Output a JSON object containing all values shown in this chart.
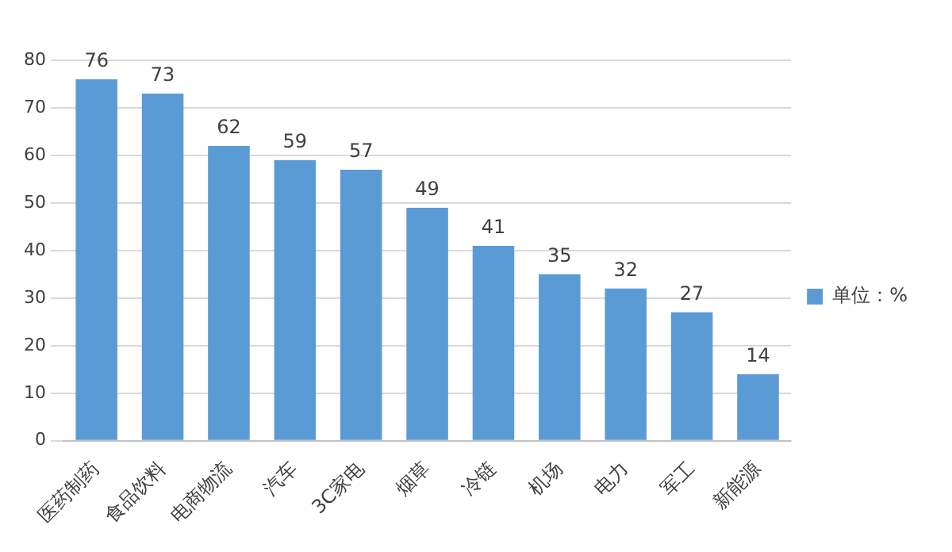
{
  "chart_data": {
    "type": "bar",
    "categories": [
      "医药制药",
      "食品饮料",
      "电商物流",
      "汽车",
      "3C家电",
      "烟草",
      "冷链",
      "机场",
      "电力",
      "军工",
      "新能源"
    ],
    "series": [
      {
        "name": "单位：%",
        "color": "#5b9bd5",
        "values": [
          76,
          73,
          62,
          59,
          57,
          49,
          41,
          35,
          32,
          27,
          14
        ]
      }
    ],
    "ylim": [
      0,
      80
    ],
    "yticks": [
      0,
      10,
      20,
      30,
      40,
      50,
      60,
      70,
      80
    ],
    "grid": "y",
    "legend": "right",
    "data_labels": true
  }
}
